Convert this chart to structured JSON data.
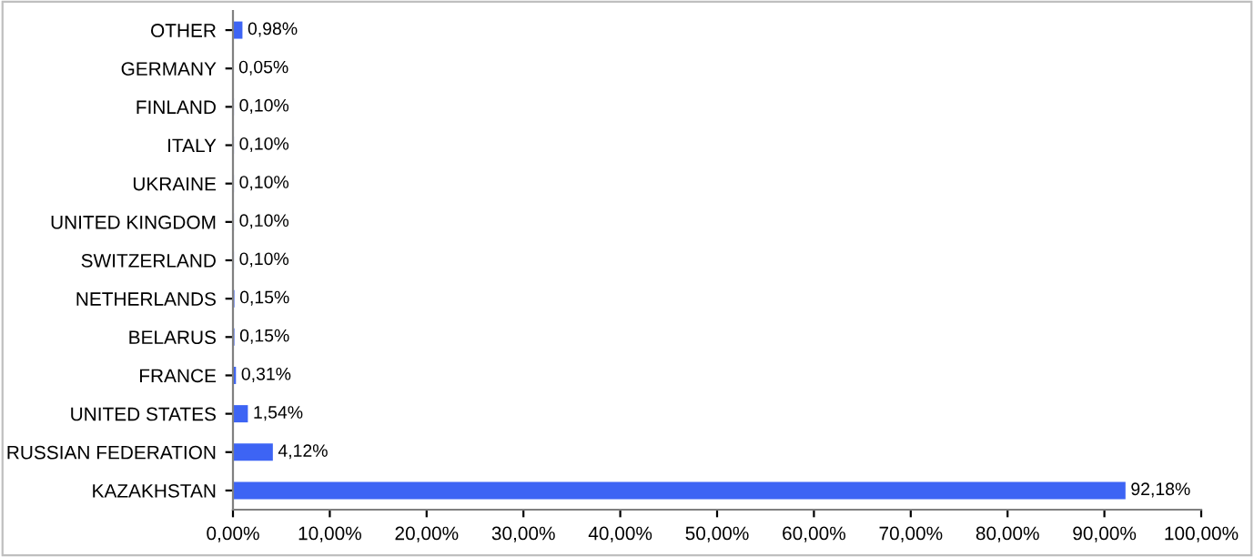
{
  "chart_data": {
    "type": "bar",
    "orientation": "horizontal",
    "categories": [
      "OTHER",
      "GERMANY",
      "FINLAND",
      "ITALY",
      "UKRAINE",
      "UNITED KINGDOM",
      "SWITZERLAND",
      "NETHERLANDS",
      "BELARUS",
      "FRANCE",
      "UNITED STATES",
      "RUSSIAN FEDERATION",
      "KAZAKHSTAN"
    ],
    "values": [
      0.98,
      0.05,
      0.1,
      0.1,
      0.1,
      0.1,
      0.1,
      0.15,
      0.15,
      0.31,
      1.54,
      4.12,
      92.18
    ],
    "value_labels": [
      "0,98%",
      "0,05%",
      "0,10%",
      "0,10%",
      "0,10%",
      "0,10%",
      "0,10%",
      "0,15%",
      "0,15%",
      "0,31%",
      "1,54%",
      "4,12%",
      "92,18%"
    ],
    "color": "#3d64f4",
    "xlim": [
      0,
      100
    ],
    "xticks": [
      {
        "value": 0,
        "label": "0,00%"
      },
      {
        "value": 10,
        "label": "10,00%"
      },
      {
        "value": 20,
        "label": "20,00%"
      },
      {
        "value": 30,
        "label": "30,00%"
      },
      {
        "value": 40,
        "label": "40,00%"
      },
      {
        "value": 50,
        "label": "50,00%"
      },
      {
        "value": 60,
        "label": "60,00%"
      },
      {
        "value": 70,
        "label": "70,00%"
      },
      {
        "value": 80,
        "label": "80,00%"
      },
      {
        "value": 90,
        "label": "90,00%"
      },
      {
        "value": 100,
        "label": "100,00%"
      }
    ],
    "grid": false,
    "legend": false
  }
}
